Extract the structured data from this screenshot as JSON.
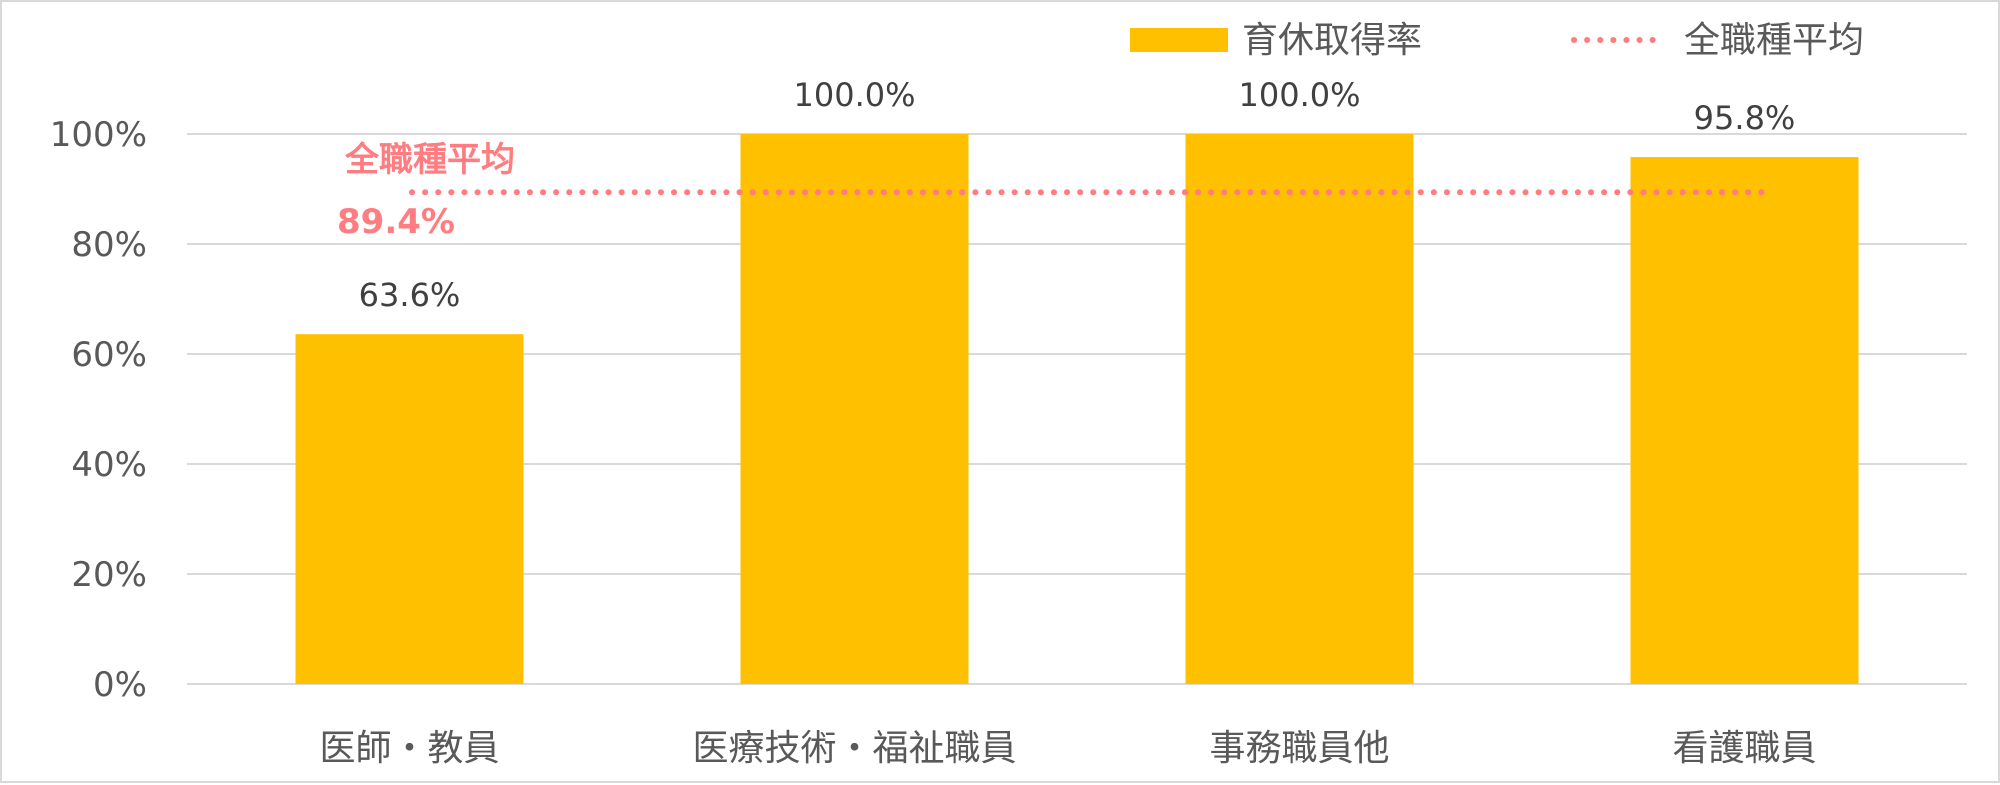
{
  "chart_data": {
    "type": "bar",
    "categories": [
      "医師・教員",
      "医療技術・福祉職員",
      "事務職員他",
      "看護職員"
    ],
    "series": [
      {
        "name": "育休取得率",
        "values": [
          63.6,
          100.0,
          100.0,
          95.8
        ],
        "color": "#ffc000"
      }
    ],
    "data_labels": [
      "63.6%",
      "100.0%",
      "100.0%",
      "95.8%"
    ],
    "reference_line": {
      "name": "全職種平均",
      "value": 89.4,
      "label_title": "全職種平均",
      "label_value": "89.4%",
      "color": "#ff7c80",
      "style": "dotted"
    },
    "y_ticks": [
      0,
      20,
      40,
      60,
      80,
      100
    ],
    "y_tick_labels": [
      "0%",
      "20%",
      "40%",
      "60%",
      "80%",
      "100%"
    ],
    "ylim": [
      0,
      100
    ],
    "grid": true,
    "legend_position": "top-right",
    "gridline_color": "#d9d9d9",
    "axis_text_color": "#595959"
  }
}
